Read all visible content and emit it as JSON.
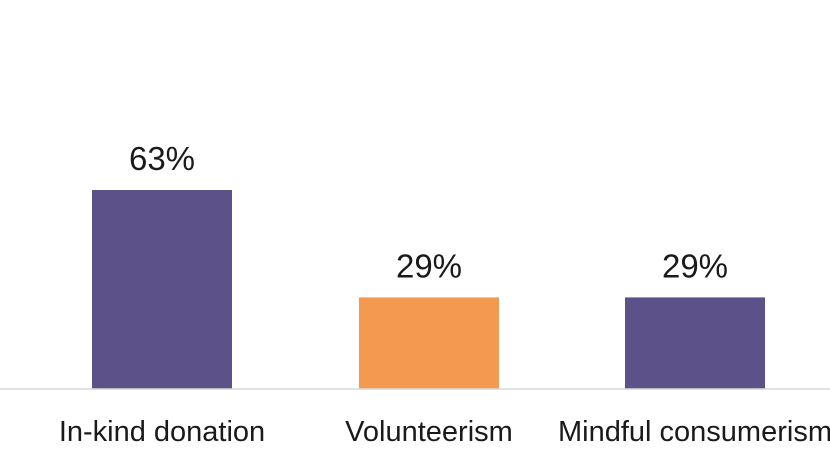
{
  "chart_data": {
    "type": "bar",
    "categories": [
      "In-kind donation",
      "Volunteerism",
      "Mindful consumerism"
    ],
    "values": [
      63,
      29,
      29
    ],
    "data_labels": [
      "63%",
      "29%",
      "29%"
    ],
    "unit": "%",
    "colors": [
      "#5d5189",
      "#f39a50",
      "#5d5189"
    ],
    "baseline_color": "#d9d9d9",
    "title": "",
    "xlabel": "",
    "ylabel": "",
    "ylim": [
      0,
      63
    ],
    "grid": false,
    "legend": "none"
  }
}
